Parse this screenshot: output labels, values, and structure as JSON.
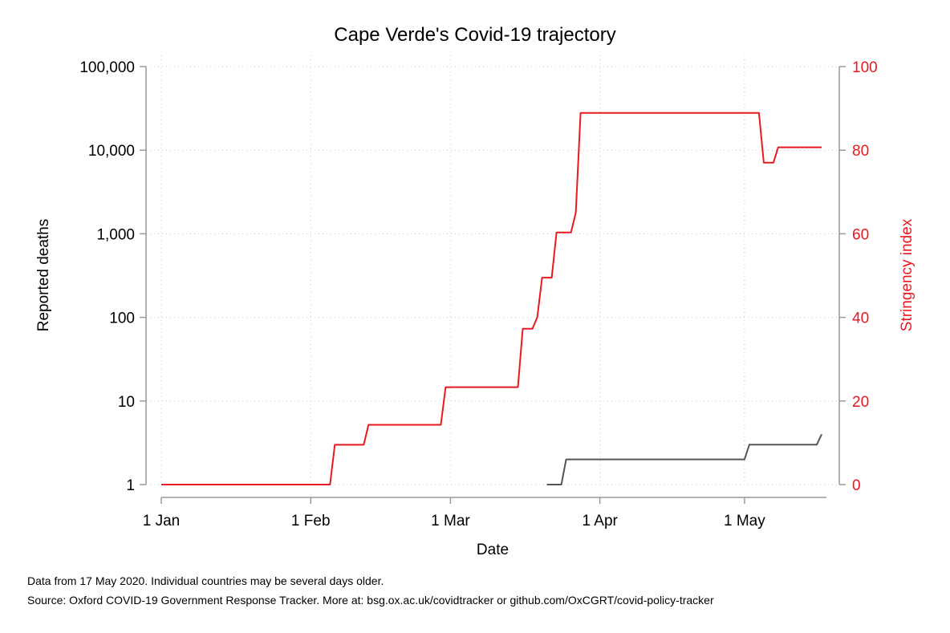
{
  "chart_data": {
    "type": "line",
    "title": "Cape Verde's Covid-19 trajectory",
    "xlabel": "Date",
    "ylabel_left": "Reported deaths",
    "ylabel_right": "Stringency index",
    "x_ticks": [
      "1 Jan",
      "1 Feb",
      "1 Mar",
      "1 Apr",
      "1 May"
    ],
    "x_range": [
      "2020-01-01",
      "2020-05-18"
    ],
    "y_left": {
      "scale": "log",
      "range": [
        1,
        100000
      ],
      "ticks": [
        1,
        10,
        100,
        1000,
        10000,
        100000
      ],
      "tick_labels": [
        "1",
        "10",
        "100",
        "1,000",
        "10,000",
        "100,000"
      ]
    },
    "y_right": {
      "scale": "linear",
      "range": [
        0,
        100
      ],
      "ticks": [
        0,
        20,
        40,
        60,
        80,
        100
      ],
      "tick_labels": [
        "0",
        "20",
        "40",
        "60",
        "80",
        "100"
      ]
    },
    "grid": true,
    "series": [
      {
        "axis": "right",
        "color": "#e8191f",
        "points": [
          [
            "2020-01-01",
            0
          ],
          [
            "2020-02-05",
            0
          ],
          [
            "2020-02-06",
            9.52
          ],
          [
            "2020-02-12",
            9.52
          ],
          [
            "2020-02-13",
            14.29
          ],
          [
            "2020-02-28",
            14.29
          ],
          [
            "2020-02-29",
            23.3
          ],
          [
            "2020-03-15",
            23.3
          ],
          [
            "2020-03-16",
            37.3
          ],
          [
            "2020-03-18",
            37.3
          ],
          [
            "2020-03-19",
            40
          ],
          [
            "2020-03-20",
            49.5
          ],
          [
            "2020-03-22",
            49.5
          ],
          [
            "2020-03-23",
            60.3
          ],
          [
            "2020-03-26",
            60.3
          ],
          [
            "2020-03-27",
            65
          ],
          [
            "2020-03-28",
            88.9
          ],
          [
            "2020-05-04",
            88.9
          ],
          [
            "2020-05-05",
            77
          ],
          [
            "2020-05-07",
            77
          ],
          [
            "2020-05-08",
            80.7
          ],
          [
            "2020-05-17",
            80.7
          ]
        ]
      },
      {
        "axis": "left",
        "color": "#555555",
        "points": [
          [
            "2020-03-21",
            1
          ],
          [
            "2020-03-24",
            1
          ],
          [
            "2020-03-25",
            2
          ],
          [
            "2020-05-01",
            2
          ],
          [
            "2020-05-02",
            3
          ],
          [
            "2020-05-16",
            3
          ],
          [
            "2020-05-17",
            4
          ]
        ]
      }
    ]
  },
  "notes": {
    "line1": "Data from 17 May 2020. Individual countries may be several days older.",
    "line2": "Source: Oxford COVID-19 Government Response Tracker. More at: bsg.ox.ac.uk/covidtracker or github.com/OxCGRT/covid-policy-tracker"
  }
}
